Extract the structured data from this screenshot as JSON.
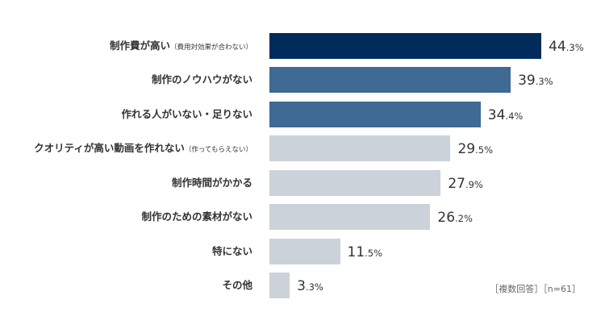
{
  "chart_data": {
    "type": "bar",
    "orientation": "horizontal",
    "categories": [
      {
        "main": "制作費が高い",
        "sub": "（費用対効果が合わない）"
      },
      {
        "main": "制作のノウハウがない",
        "sub": ""
      },
      {
        "main": "作れる人がいない・足りない",
        "sub": ""
      },
      {
        "main": "クオリティが高い動画を作れない",
        "sub": "（作ってもらえない）"
      },
      {
        "main": "制作時間がかかる",
        "sub": ""
      },
      {
        "main": "制作のための素材がない",
        "sub": ""
      },
      {
        "main": "特にない",
        "sub": ""
      },
      {
        "main": "その他",
        "sub": ""
      }
    ],
    "values": [
      44.3,
      39.3,
      34.4,
      29.5,
      27.9,
      26.2,
      11.5,
      3.3
    ],
    "value_labels": [
      {
        "int": "44",
        "dec": ".3%"
      },
      {
        "int": "39",
        "dec": ".3%"
      },
      {
        "int": "34",
        "dec": ".4%"
      },
      {
        "int": "29",
        "dec": ".5%"
      },
      {
        "int": "27",
        "dec": ".9%"
      },
      {
        "int": "26",
        "dec": ".2%"
      },
      {
        "int": "11",
        "dec": ".5%"
      },
      {
        "int": "3",
        "dec": ".3%"
      }
    ],
    "colors": [
      "#002b5a",
      "#3e6a94",
      "#3e6a94",
      "#cbd2da",
      "#cbd2da",
      "#cbd2da",
      "#cbd2da",
      "#cbd2da"
    ],
    "xlim": [
      0,
      50
    ],
    "grid": false,
    "note": "［複数回答］［n=61］"
  }
}
